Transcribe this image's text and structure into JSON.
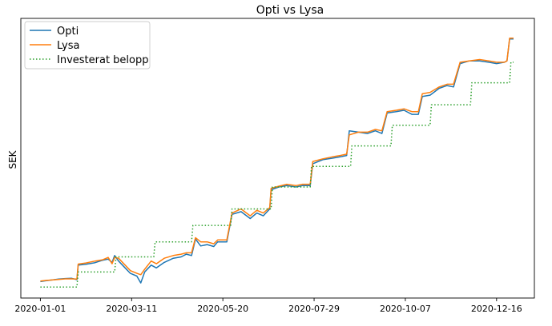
{
  "chart_data": {
    "type": "line",
    "title": "Opti vs Lysa",
    "ylabel": "SEK",
    "xlabel": "",
    "x_tick_labels": [
      "2020-01-01",
      "2020-03-11",
      "2020-05-20",
      "2020-07-29",
      "2020-10-07",
      "2020-12-16"
    ],
    "x_tick_dates": [
      "2020-01-01",
      "2020-03-11",
      "2020-05-20",
      "2020-07-29",
      "2020-10-07",
      "2020-12-16"
    ],
    "xlim": [
      "2019-12-17",
      "2021-01-14"
    ],
    "ylim": [
      -2,
      100
    ],
    "y_ticks_shown": false,
    "grid": false,
    "legend_position": "upper left",
    "series": [
      {
        "name": "Opti",
        "color": "#1f77b4",
        "style": "solid",
        "points": [
          [
            "2020-01-01",
            4.0
          ],
          [
            "2020-01-05",
            4.3
          ],
          [
            "2020-01-10",
            4.6
          ],
          [
            "2020-01-15",
            4.9
          ],
          [
            "2020-01-20",
            5.1
          ],
          [
            "2020-01-25",
            5.2
          ],
          [
            "2020-01-29",
            4.7
          ],
          [
            "2020-01-30",
            10.0
          ],
          [
            "2020-02-05",
            10.3
          ],
          [
            "2020-02-12",
            10.9
          ],
          [
            "2020-02-18",
            11.8
          ],
          [
            "2020-02-22",
            12.2
          ],
          [
            "2020-02-25",
            11.0
          ],
          [
            "2020-02-27",
            13.5
          ],
          [
            "2020-03-01",
            11.5
          ],
          [
            "2020-03-06",
            9.0
          ],
          [
            "2020-03-10",
            7.0
          ],
          [
            "2020-03-15",
            6.0
          ],
          [
            "2020-03-18",
            3.5
          ],
          [
            "2020-03-21",
            7.5
          ],
          [
            "2020-03-26",
            10.0
          ],
          [
            "2020-03-30",
            9.0
          ],
          [
            "2020-04-05",
            11.0
          ],
          [
            "2020-04-12",
            12.5
          ],
          [
            "2020-04-18",
            13.0
          ],
          [
            "2020-04-22",
            14.0
          ],
          [
            "2020-04-26",
            13.5
          ],
          [
            "2020-04-29",
            19.5
          ],
          [
            "2020-05-03",
            17.0
          ],
          [
            "2020-05-08",
            17.5
          ],
          [
            "2020-05-13",
            16.8
          ],
          [
            "2020-05-16",
            18.5
          ],
          [
            "2020-05-23",
            18.5
          ],
          [
            "2020-05-27",
            28.5
          ],
          [
            "2020-06-03",
            29.5
          ],
          [
            "2020-06-10",
            27.0
          ],
          [
            "2020-06-15",
            29.0
          ],
          [
            "2020-06-20",
            28.0
          ],
          [
            "2020-06-25",
            30.5
          ],
          [
            "2020-06-26",
            37.5
          ],
          [
            "2020-07-02",
            38.5
          ],
          [
            "2020-07-08",
            39.0
          ],
          [
            "2020-07-15",
            38.5
          ],
          [
            "2020-07-20",
            39.0
          ],
          [
            "2020-07-26",
            39.0
          ],
          [
            "2020-07-28",
            47.0
          ],
          [
            "2020-08-05",
            48.5
          ],
          [
            "2020-08-12",
            49.0
          ],
          [
            "2020-08-18",
            49.5
          ],
          [
            "2020-08-23",
            50.0
          ],
          [
            "2020-08-25",
            59.0
          ],
          [
            "2020-09-01",
            58.5
          ],
          [
            "2020-09-08",
            58.0
          ],
          [
            "2020-09-14",
            59.0
          ],
          [
            "2020-09-19",
            58.0
          ],
          [
            "2020-09-23",
            65.5
          ],
          [
            "2020-09-30",
            66.0
          ],
          [
            "2020-10-06",
            66.5
          ],
          [
            "2020-10-12",
            65.0
          ],
          [
            "2020-10-17",
            65.0
          ],
          [
            "2020-10-20",
            71.5
          ],
          [
            "2020-10-26",
            72.0
          ],
          [
            "2020-11-02",
            74.5
          ],
          [
            "2020-11-08",
            75.5
          ],
          [
            "2020-11-13",
            75.0
          ],
          [
            "2020-11-18",
            83.5
          ],
          [
            "2020-11-25",
            84.5
          ],
          [
            "2020-12-03",
            84.5
          ],
          [
            "2020-12-10",
            84.0
          ],
          [
            "2020-12-16",
            83.5
          ],
          [
            "2020-12-22",
            84.0
          ],
          [
            "2020-12-24",
            84.5
          ],
          [
            "2020-12-26",
            92.5
          ],
          [
            "2020-12-29",
            92.5
          ]
        ]
      },
      {
        "name": "Lysa",
        "color": "#ff7f0e",
        "style": "solid",
        "points": [
          [
            "2020-01-01",
            4.2
          ],
          [
            "2020-01-05",
            4.4
          ],
          [
            "2020-01-10",
            4.6
          ],
          [
            "2020-01-15",
            4.8
          ],
          [
            "2020-01-20",
            5.0
          ],
          [
            "2020-01-25",
            5.0
          ],
          [
            "2020-01-29",
            4.9
          ],
          [
            "2020-01-30",
            10.4
          ],
          [
            "2020-02-05",
            10.8
          ],
          [
            "2020-02-12",
            11.5
          ],
          [
            "2020-02-18",
            12.0
          ],
          [
            "2020-02-22",
            12.8
          ],
          [
            "2020-02-25",
            10.5
          ],
          [
            "2020-02-27",
            12.8
          ],
          [
            "2020-03-01",
            12.5
          ],
          [
            "2020-03-06",
            10.0
          ],
          [
            "2020-03-10",
            8.0
          ],
          [
            "2020-03-15",
            7.0
          ],
          [
            "2020-03-18",
            6.5
          ],
          [
            "2020-03-21",
            8.5
          ],
          [
            "2020-03-26",
            11.5
          ],
          [
            "2020-03-30",
            10.5
          ],
          [
            "2020-04-05",
            12.5
          ],
          [
            "2020-04-12",
            13.5
          ],
          [
            "2020-04-18",
            14.0
          ],
          [
            "2020-04-22",
            14.5
          ],
          [
            "2020-04-26",
            14.5
          ],
          [
            "2020-04-29",
            20.0
          ],
          [
            "2020-05-03",
            18.5
          ],
          [
            "2020-05-08",
            18.5
          ],
          [
            "2020-05-13",
            17.8
          ],
          [
            "2020-05-16",
            19.2
          ],
          [
            "2020-05-23",
            19.2
          ],
          [
            "2020-05-27",
            29.0
          ],
          [
            "2020-06-03",
            30.5
          ],
          [
            "2020-06-10",
            28.0
          ],
          [
            "2020-06-15",
            30.0
          ],
          [
            "2020-06-20",
            29.0
          ],
          [
            "2020-06-25",
            31.0
          ],
          [
            "2020-06-26",
            38.0
          ],
          [
            "2020-07-02",
            38.8
          ],
          [
            "2020-07-08",
            39.5
          ],
          [
            "2020-07-15",
            39.0
          ],
          [
            "2020-07-20",
            39.5
          ],
          [
            "2020-07-26",
            39.5
          ],
          [
            "2020-07-28",
            47.8
          ],
          [
            "2020-08-05",
            48.8
          ],
          [
            "2020-08-12",
            49.5
          ],
          [
            "2020-08-18",
            50.0
          ],
          [
            "2020-08-23",
            50.5
          ],
          [
            "2020-08-25",
            57.5
          ],
          [
            "2020-09-01",
            58.5
          ],
          [
            "2020-09-08",
            58.5
          ],
          [
            "2020-09-14",
            59.5
          ],
          [
            "2020-09-19",
            59.0
          ],
          [
            "2020-09-23",
            66.0
          ],
          [
            "2020-09-30",
            66.5
          ],
          [
            "2020-10-06",
            67.0
          ],
          [
            "2020-10-12",
            66.0
          ],
          [
            "2020-10-17",
            66.0
          ],
          [
            "2020-10-20",
            72.5
          ],
          [
            "2020-10-26",
            73.0
          ],
          [
            "2020-11-02",
            75.0
          ],
          [
            "2020-11-08",
            76.0
          ],
          [
            "2020-11-13",
            76.0
          ],
          [
            "2020-11-18",
            84.0
          ],
          [
            "2020-11-25",
            84.5
          ],
          [
            "2020-12-03",
            85.0
          ],
          [
            "2020-12-10",
            84.5
          ],
          [
            "2020-12-16",
            84.0
          ],
          [
            "2020-12-22",
            84.0
          ],
          [
            "2020-12-24",
            84.5
          ],
          [
            "2020-12-26",
            92.8
          ],
          [
            "2020-12-29",
            92.8
          ]
        ]
      },
      {
        "name": "Investerat belopp",
        "color": "#2ca02c",
        "style": "dotted",
        "points": [
          [
            "2020-01-01",
            2.0
          ],
          [
            "2020-01-29",
            2.0
          ],
          [
            "2020-01-30",
            7.5
          ],
          [
            "2020-02-27",
            7.5
          ],
          [
            "2020-02-28",
            13.0
          ],
          [
            "2020-03-28",
            13.0
          ],
          [
            "2020-03-29",
            18.5
          ],
          [
            "2020-04-26",
            18.5
          ],
          [
            "2020-04-27",
            24.5
          ],
          [
            "2020-05-26",
            24.5
          ],
          [
            "2020-05-27",
            30.5
          ],
          [
            "2020-06-26",
            30.5
          ],
          [
            "2020-06-27",
            38.5
          ],
          [
            "2020-07-26",
            38.5
          ],
          [
            "2020-07-27",
            46.0
          ],
          [
            "2020-08-26",
            46.0
          ],
          [
            "2020-08-27",
            53.5
          ],
          [
            "2020-09-26",
            53.5
          ],
          [
            "2020-09-27",
            61.0
          ],
          [
            "2020-10-26",
            61.0
          ],
          [
            "2020-10-27",
            68.5
          ],
          [
            "2020-11-26",
            68.5
          ],
          [
            "2020-11-27",
            76.5
          ],
          [
            "2020-12-26",
            76.5
          ],
          [
            "2020-12-27",
            84.0
          ],
          [
            "2020-12-29",
            84.0
          ]
        ]
      }
    ]
  }
}
